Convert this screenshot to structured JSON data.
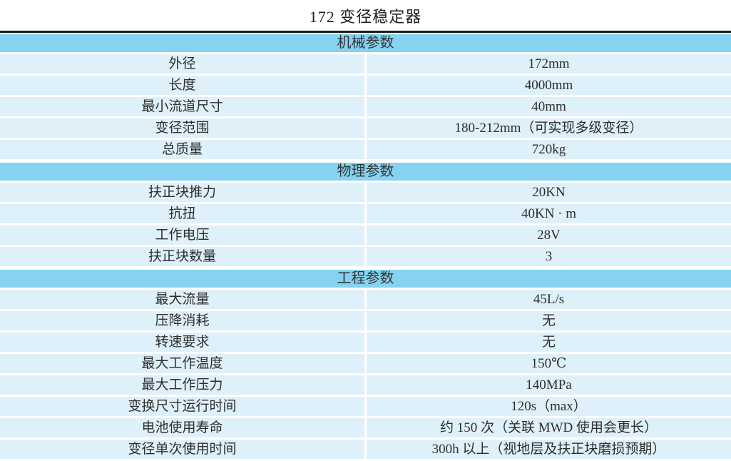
{
  "page": {
    "title": "172 变径稳定器"
  },
  "colors": {
    "section_header_bg": "#85d3f0",
    "row_bg": "#def0f9",
    "top_border": "#1c1c1c",
    "text": "#2e2e2e"
  },
  "table": {
    "sections": [
      {
        "header": "机械参数",
        "rows": [
          {
            "label": "外径",
            "value": "172mm"
          },
          {
            "label": "长度",
            "value": "4000mm"
          },
          {
            "label": "最小流道尺寸",
            "value": "40mm"
          },
          {
            "label": "变径范围",
            "value": "180-212mm（可实现多级变径）"
          },
          {
            "label": "总质量",
            "value": "720kg"
          }
        ]
      },
      {
        "header": "物理参数",
        "rows": [
          {
            "label": "扶正块推力",
            "value": "20KN"
          },
          {
            "label": "抗扭",
            "value": "40KN · m"
          },
          {
            "label": "工作电压",
            "value": "28V"
          },
          {
            "label": "扶正块数量",
            "value": "3"
          }
        ]
      },
      {
        "header": "工程参数",
        "rows": [
          {
            "label": "最大流量",
            "value": "45L/s"
          },
          {
            "label": "压降消耗",
            "value": "无"
          },
          {
            "label": "转速要求",
            "value": "无"
          },
          {
            "label": "最大工作温度",
            "value": "150℃"
          },
          {
            "label": "最大工作压力",
            "value": "140MPa"
          },
          {
            "label": "变换尺寸运行时间",
            "value": "120s（max）"
          },
          {
            "label": "电池使用寿命",
            "value": "约 150 次（关联 MWD 使用会更长）"
          },
          {
            "label": "变径单次使用时间",
            "value": "300h 以上（视地层及扶正块磨损预期）"
          }
        ]
      }
    ]
  }
}
